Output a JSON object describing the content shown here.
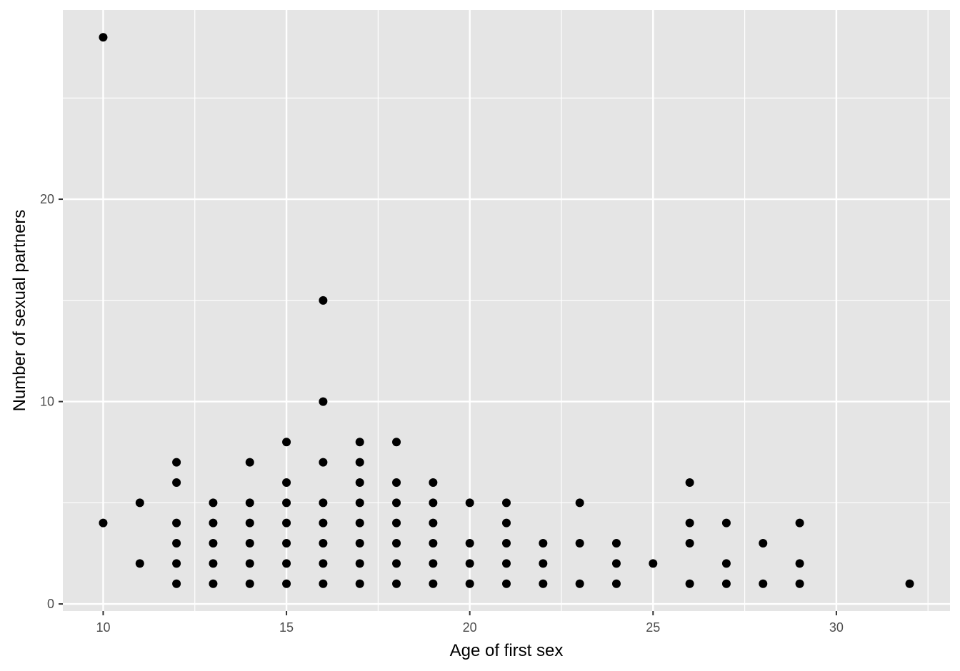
{
  "chart_data": {
    "type": "scatter",
    "title": "",
    "xlabel": "Age of first sex",
    "ylabel": "Number of sexual partners",
    "xlim": [
      8.9,
      33.1
    ],
    "ylim": [
      -0.35,
      29.35
    ],
    "x_ticks": [
      10,
      15,
      20,
      25,
      30
    ],
    "y_ticks": [
      0,
      10,
      20
    ],
    "grid": true,
    "legend": "none",
    "colors": {
      "panel": "#e5e5e5",
      "grid": "#ffffff",
      "point": "#000000",
      "tick": "#333333",
      "tick_label": "#4d4d4d"
    },
    "points": [
      [
        10,
        28
      ],
      [
        10,
        4
      ],
      [
        11,
        5
      ],
      [
        11,
        2
      ],
      [
        12,
        7
      ],
      [
        12,
        6
      ],
      [
        12,
        4
      ],
      [
        12,
        3
      ],
      [
        12,
        2
      ],
      [
        12,
        1
      ],
      [
        13,
        5
      ],
      [
        13,
        4
      ],
      [
        13,
        3
      ],
      [
        13,
        2
      ],
      [
        13,
        1
      ],
      [
        14,
        7
      ],
      [
        14,
        5
      ],
      [
        14,
        4
      ],
      [
        14,
        3
      ],
      [
        14,
        2
      ],
      [
        14,
        1
      ],
      [
        15,
        8
      ],
      [
        15,
        6
      ],
      [
        15,
        5
      ],
      [
        15,
        4
      ],
      [
        15,
        3
      ],
      [
        15,
        2
      ],
      [
        15,
        1
      ],
      [
        16,
        15
      ],
      [
        16,
        10
      ],
      [
        16,
        7
      ],
      [
        16,
        5
      ],
      [
        16,
        4
      ],
      [
        16,
        3
      ],
      [
        16,
        2
      ],
      [
        16,
        1
      ],
      [
        17,
        8
      ],
      [
        17,
        7
      ],
      [
        17,
        6
      ],
      [
        17,
        5
      ],
      [
        17,
        4
      ],
      [
        17,
        3
      ],
      [
        17,
        2
      ],
      [
        17,
        1
      ],
      [
        18,
        8
      ],
      [
        18,
        6
      ],
      [
        18,
        5
      ],
      [
        18,
        4
      ],
      [
        18,
        3
      ],
      [
        18,
        2
      ],
      [
        18,
        1
      ],
      [
        19,
        6
      ],
      [
        19,
        5
      ],
      [
        19,
        4
      ],
      [
        19,
        3
      ],
      [
        19,
        2
      ],
      [
        19,
        1
      ],
      [
        20,
        5
      ],
      [
        20,
        3
      ],
      [
        20,
        2
      ],
      [
        20,
        1
      ],
      [
        21,
        5
      ],
      [
        21,
        4
      ],
      [
        21,
        3
      ],
      [
        21,
        2
      ],
      [
        21,
        1
      ],
      [
        22,
        3
      ],
      [
        22,
        2
      ],
      [
        22,
        1
      ],
      [
        23,
        5
      ],
      [
        23,
        3
      ],
      [
        23,
        1
      ],
      [
        24,
        3
      ],
      [
        24,
        2
      ],
      [
        24,
        1
      ],
      [
        25,
        2
      ],
      [
        26,
        6
      ],
      [
        26,
        4
      ],
      [
        26,
        3
      ],
      [
        26,
        1
      ],
      [
        27,
        4
      ],
      [
        27,
        2
      ],
      [
        27,
        1
      ],
      [
        28,
        3
      ],
      [
        28,
        1
      ],
      [
        29,
        4
      ],
      [
        29,
        2
      ],
      [
        29,
        1
      ],
      [
        32,
        1
      ]
    ]
  }
}
